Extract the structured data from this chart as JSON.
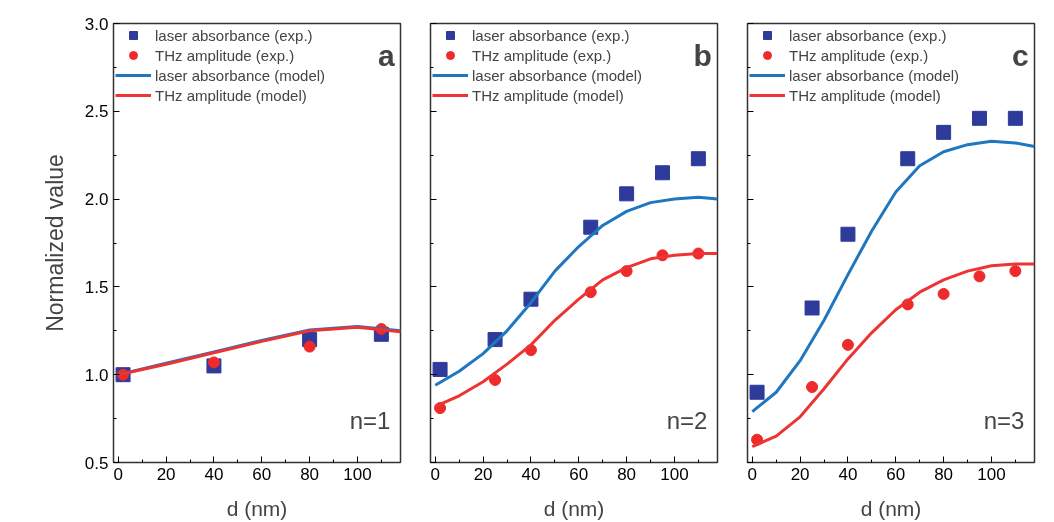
{
  "chart_data": [
    {
      "type": "scatter",
      "xlabel": "d (nm)",
      "ylabel": "Normalized value",
      "xlim": [
        -2,
        118
      ],
      "ylim": [
        0.5,
        3.0
      ],
      "xticks": [
        0,
        20,
        40,
        60,
        80,
        100
      ],
      "yticks": [
        {
          "value": 0.5,
          "label": "0.5"
        },
        {
          "value": 1.0,
          "label": "1.0"
        },
        {
          "value": 1.5,
          "label": "1.5"
        },
        {
          "value": 2.0,
          "label": "2.0"
        },
        {
          "value": 2.5,
          "label": "2.5"
        },
        {
          "value": 3.0,
          "label": "3.0"
        }
      ],
      "legend": "top left",
      "grid": false,
      "annotations": [
        "a",
        "n=1"
      ],
      "series": [
        {
          "name": "laser absorbance (exp.)",
          "marker": "square",
          "color": "#2e3b9a",
          "x": [
            2,
            40,
            80,
            110
          ],
          "values": [
            1.0,
            1.05,
            1.2,
            1.23
          ]
        },
        {
          "name": "THz amplitude (exp.)",
          "marker": "circle",
          "color": "#ee2a2a",
          "x": [
            2,
            40,
            80,
            110
          ],
          "values": [
            1.0,
            1.07,
            1.16,
            1.26
          ]
        },
        {
          "name": "laser absorbance (model)",
          "type": "line",
          "line_style": "solid",
          "color": "#1f77c0",
          "x": [
            0,
            20,
            40,
            60,
            80,
            100,
            118
          ],
          "values": [
            1.0,
            1.065,
            1.13,
            1.195,
            1.255,
            1.275,
            1.25
          ]
        },
        {
          "name": "THz amplitude (model)",
          "type": "line",
          "line_style": "solid",
          "color": "#ee3333",
          "x": [
            0,
            20,
            40,
            60,
            80,
            100,
            118
          ],
          "values": [
            1.0,
            1.06,
            1.125,
            1.19,
            1.25,
            1.27,
            1.245
          ]
        }
      ]
    },
    {
      "type": "scatter",
      "xlabel": "d (nm)",
      "xlim": [
        -2,
        118
      ],
      "ylim": [
        0.5,
        3.0
      ],
      "xticks": [
        0,
        20,
        40,
        60,
        80,
        100
      ],
      "yticks": [
        {
          "value": 0.5,
          "label": null
        },
        {
          "value": 1.0,
          "label": null
        },
        {
          "value": 1.5,
          "label": null
        },
        {
          "value": 2.0,
          "label": null
        },
        {
          "value": 2.5,
          "label": null
        },
        {
          "value": 3.0,
          "label": null
        }
      ],
      "tick_labels": "x",
      "legend": "top left",
      "grid": false,
      "annotations": [
        "b",
        "n=2"
      ],
      "series": [
        {
          "name": "laser absorbance (exp.)",
          "marker": "square",
          "color": "#2e3b9a",
          "x": [
            2,
            25,
            40,
            65,
            80,
            95,
            110
          ],
          "values": [
            1.03,
            1.2,
            1.43,
            1.84,
            2.03,
            2.15,
            2.23
          ]
        },
        {
          "name": "THz amplitude (exp.)",
          "marker": "circle",
          "color": "#ee2a2a",
          "x": [
            2,
            25,
            40,
            65,
            80,
            95,
            110
          ],
          "values": [
            0.81,
            0.97,
            1.14,
            1.47,
            1.59,
            1.68,
            1.69
          ]
        },
        {
          "name": "laser absorbance (model)",
          "type": "line",
          "line_style": "solid",
          "color": "#1f77c0",
          "x": [
            0,
            10,
            20,
            30,
            40,
            50,
            60,
            70,
            80,
            90,
            100,
            110,
            118
          ],
          "values": [
            0.94,
            1.02,
            1.12,
            1.25,
            1.41,
            1.59,
            1.73,
            1.85,
            1.93,
            1.98,
            2.0,
            2.01,
            2.0
          ]
        },
        {
          "name": "THz amplitude (model)",
          "type": "line",
          "line_style": "solid",
          "color": "#ee3333",
          "x": [
            0,
            10,
            20,
            30,
            40,
            50,
            60,
            70,
            80,
            90,
            100,
            110,
            118
          ],
          "values": [
            0.82,
            0.88,
            0.96,
            1.06,
            1.17,
            1.31,
            1.43,
            1.54,
            1.61,
            1.66,
            1.68,
            1.69,
            1.69
          ]
        }
      ]
    },
    {
      "type": "scatter",
      "xlabel": "d (nm)",
      "xlim": [
        -2,
        118
      ],
      "ylim": [
        0.5,
        3.0
      ],
      "xticks": [
        0,
        20,
        40,
        60,
        80,
        100
      ],
      "yticks": [
        {
          "value": 0.5,
          "label": null
        },
        {
          "value": 1.0,
          "label": null
        },
        {
          "value": 1.5,
          "label": null
        },
        {
          "value": 2.0,
          "label": null
        },
        {
          "value": 2.5,
          "label": null
        },
        {
          "value": 3.0,
          "label": null
        }
      ],
      "tick_labels": "x",
      "legend": "top left",
      "grid": false,
      "annotations": [
        "c",
        "n=3"
      ],
      "series": [
        {
          "name": "laser absorbance (exp.)",
          "marker": "square",
          "color": "#2e3b9a",
          "x": [
            2,
            25,
            40,
            65,
            80,
            95,
            110
          ],
          "values": [
            0.9,
            1.38,
            1.8,
            2.23,
            2.38,
            2.46,
            2.46
          ]
        },
        {
          "name": "THz amplitude (exp.)",
          "marker": "circle",
          "color": "#ee2a2a",
          "x": [
            2,
            25,
            40,
            65,
            80,
            95,
            110
          ],
          "values": [
            0.63,
            0.93,
            1.17,
            1.4,
            1.46,
            1.56,
            1.59
          ]
        },
        {
          "name": "laser absorbance (model)",
          "type": "line",
          "line_style": "solid",
          "color": "#1f77c0",
          "x": [
            0,
            10,
            20,
            30,
            40,
            50,
            60,
            70,
            80,
            90,
            100,
            110,
            118
          ],
          "values": [
            0.79,
            0.9,
            1.08,
            1.31,
            1.57,
            1.82,
            2.04,
            2.19,
            2.27,
            2.31,
            2.33,
            2.32,
            2.3
          ]
        },
        {
          "name": "THz amplitude (model)",
          "type": "line",
          "line_style": "solid",
          "color": "#ee3333",
          "x": [
            0,
            10,
            20,
            30,
            40,
            50,
            60,
            70,
            80,
            90,
            100,
            110,
            118
          ],
          "values": [
            0.59,
            0.65,
            0.76,
            0.92,
            1.09,
            1.24,
            1.37,
            1.47,
            1.54,
            1.59,
            1.62,
            1.63,
            1.63
          ]
        }
      ]
    }
  ]
}
